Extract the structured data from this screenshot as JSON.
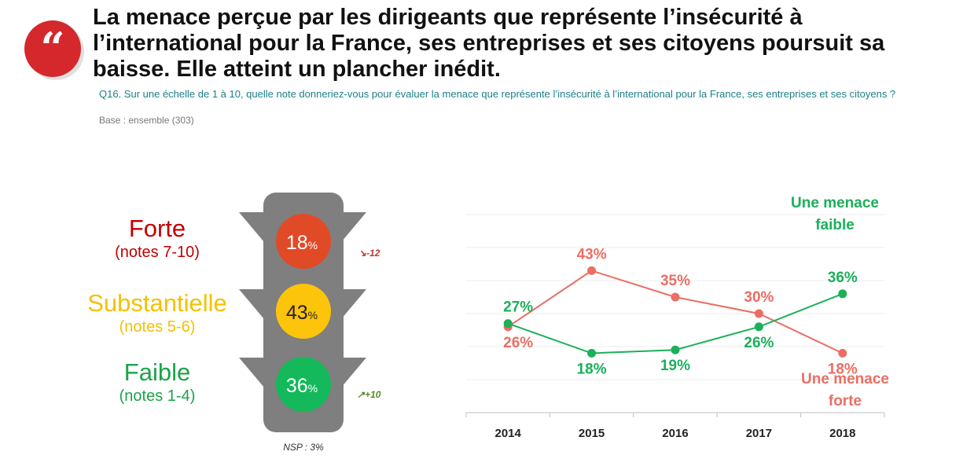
{
  "header": {
    "quote_mark": "“",
    "title": "La menace perçue par les dirigeants que représente l’insécurité à l’international pour la France, ses entreprises et ses citoyens poursuit sa baisse. Elle atteint un plancher inédit.",
    "question": "Q16. Sur une échelle de 1 à 10, quelle note donneriez-vous pour évaluer la menace que représente l’insécurité à l’international pour la France, ses entreprises et ses citoyens ?",
    "base": "Base : ensemble (303)"
  },
  "colors": {
    "brand_red": "#d4282c",
    "red_light": "#e14a26",
    "yellow_light": "#fcc40a",
    "green_light": "#13b95a",
    "forte_text": "#c00000",
    "substantielle_text": "#f5c000",
    "faible_text": "#1aa34a",
    "line_forte": "#ea6e63",
    "line_faible": "#1bb05a",
    "traffic_body": "#7f7f7f"
  },
  "traffic_light": {
    "categories": [
      {
        "name": "Forte",
        "range": "(notes 7-10)",
        "value": "18",
        "unit": "%",
        "delta": "-12"
      },
      {
        "name": "Substantielle",
        "range": "(notes 5-6)",
        "value": "43",
        "unit": "%",
        "delta": ""
      },
      {
        "name": "Faible",
        "range": "(notes 1-4)",
        "value": "36",
        "unit": "%",
        "delta": "+10"
      }
    ],
    "nsp": "NSP : 3%"
  },
  "chart_data": {
    "type": "line",
    "x": [
      "2014",
      "2015",
      "2016",
      "2017",
      "2018"
    ],
    "series": [
      {
        "name": "Une menace forte",
        "values": [
          26,
          43,
          35,
          30,
          18
        ],
        "labels": [
          "26%",
          "43%",
          "35%",
          "30%",
          "18%"
        ],
        "legend": [
          "Une menace",
          "forte"
        ]
      },
      {
        "name": "Une menace faible",
        "values": [
          27,
          18,
          19,
          26,
          36
        ],
        "labels": [
          "27%",
          "18%",
          "19%",
          "26%",
          "36%"
        ],
        "legend": [
          "Une menace",
          "faible"
        ]
      }
    ],
    "ylim": [
      0,
      60
    ],
    "grid": true,
    "xlabel": "",
    "ylabel": ""
  }
}
